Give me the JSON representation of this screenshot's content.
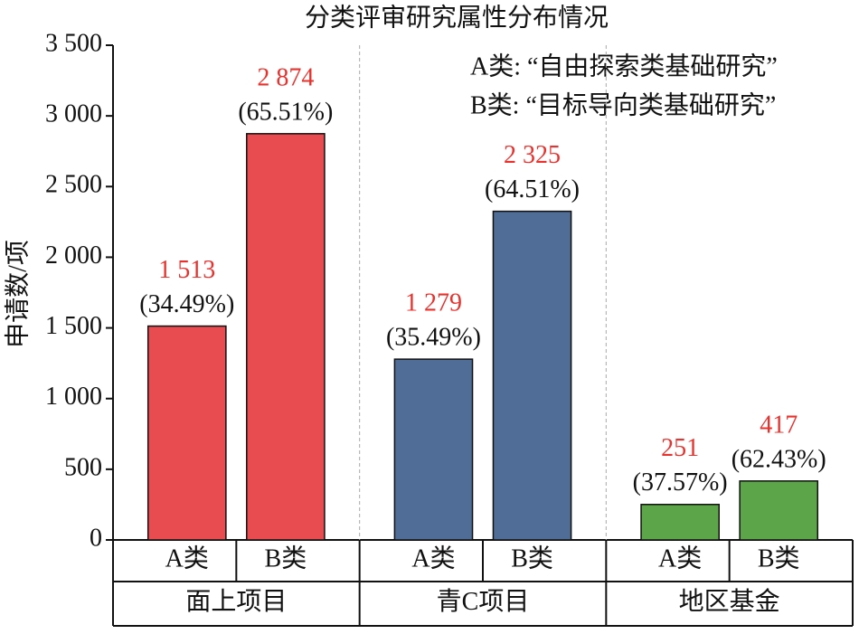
{
  "chart_data": {
    "type": "bar",
    "title": "分类评审研究属性分布情况",
    "y_label": "申请数/项",
    "annotations": [
      "A类: “自由探索类基础研究”",
      "B类: “目标导向类基础研究”"
    ],
    "ylim": [
      0,
      3500
    ],
    "yticks": [
      0,
      500,
      {
        "value": 1000,
        "label": "1 000"
      },
      {
        "value": 1500,
        "label": "1 500"
      },
      {
        "value": 2000,
        "label": "2 000"
      },
      {
        "value": 2500,
        "label": "2 500"
      },
      {
        "value": 3000,
        "label": "3 000"
      },
      {
        "value": 3500,
        "label": "3 500"
      }
    ],
    "groups": [
      {
        "name": "面上项目",
        "color": "#e84c50",
        "categories": [
          "A类",
          "B类"
        ],
        "values": [
          1513,
          2874
        ],
        "value_labels": [
          "1 513",
          "2 874"
        ],
        "share_labels": [
          "(34.49%)",
          "(65.51%)"
        ]
      },
      {
        "name": "青C项目",
        "color": "#4f6d96",
        "categories": [
          "A类",
          "B类"
        ],
        "values": [
          1279,
          2325
        ],
        "value_labels": [
          "1 279",
          "2 325"
        ],
        "share_labels": [
          "(35.49%)",
          "(64.51%)"
        ]
      },
      {
        "name": "地区基金",
        "color": "#5ca548",
        "categories": [
          "A类",
          "B类"
        ],
        "values": [
          251,
          417
        ],
        "value_labels": [
          "251",
          "417"
        ],
        "share_labels": [
          "(37.57%)",
          "(62.43%)"
        ]
      }
    ],
    "value_label_color": "#e8322e"
  }
}
